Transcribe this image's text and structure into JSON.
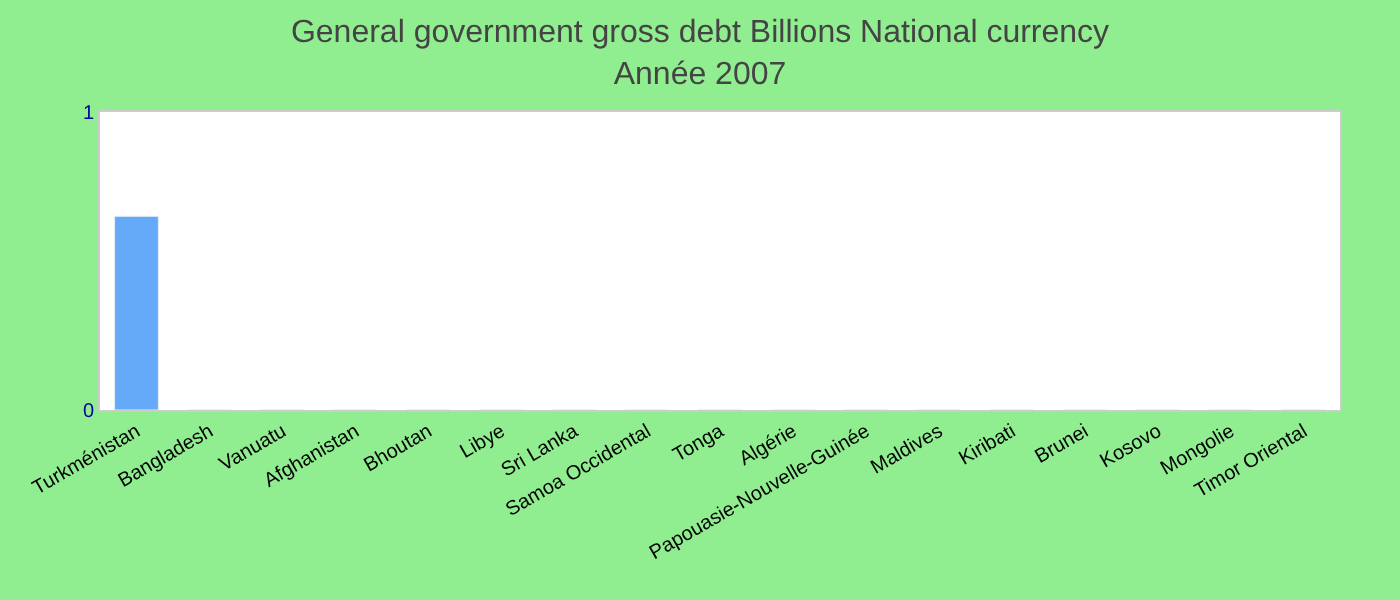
{
  "chart_data": {
    "type": "bar",
    "title": "General government gross debt Billions National currency",
    "subtitle": "Année 2007",
    "categories": [
      "Turkménistan",
      "Bangladesh",
      "Vanuatu",
      "Afghanistan",
      "Bhoutan",
      "Libye",
      "Sri Lanka",
      "Samoa Occidental",
      "Tonga",
      "Algérie",
      "Papouasie-Nouvelle-Guinée",
      "Maldives",
      "Kiribati",
      "Brunei",
      "Kosovo",
      "Mongolie",
      "Timor Oriental"
    ],
    "values": [
      0.65,
      0,
      0,
      0,
      0,
      0,
      0,
      0,
      0,
      0,
      0,
      0,
      0,
      0,
      0,
      0,
      0
    ],
    "color": "#64aaf8",
    "ylim": [
      0,
      1
    ],
    "yticks": [
      0,
      1
    ]
  }
}
